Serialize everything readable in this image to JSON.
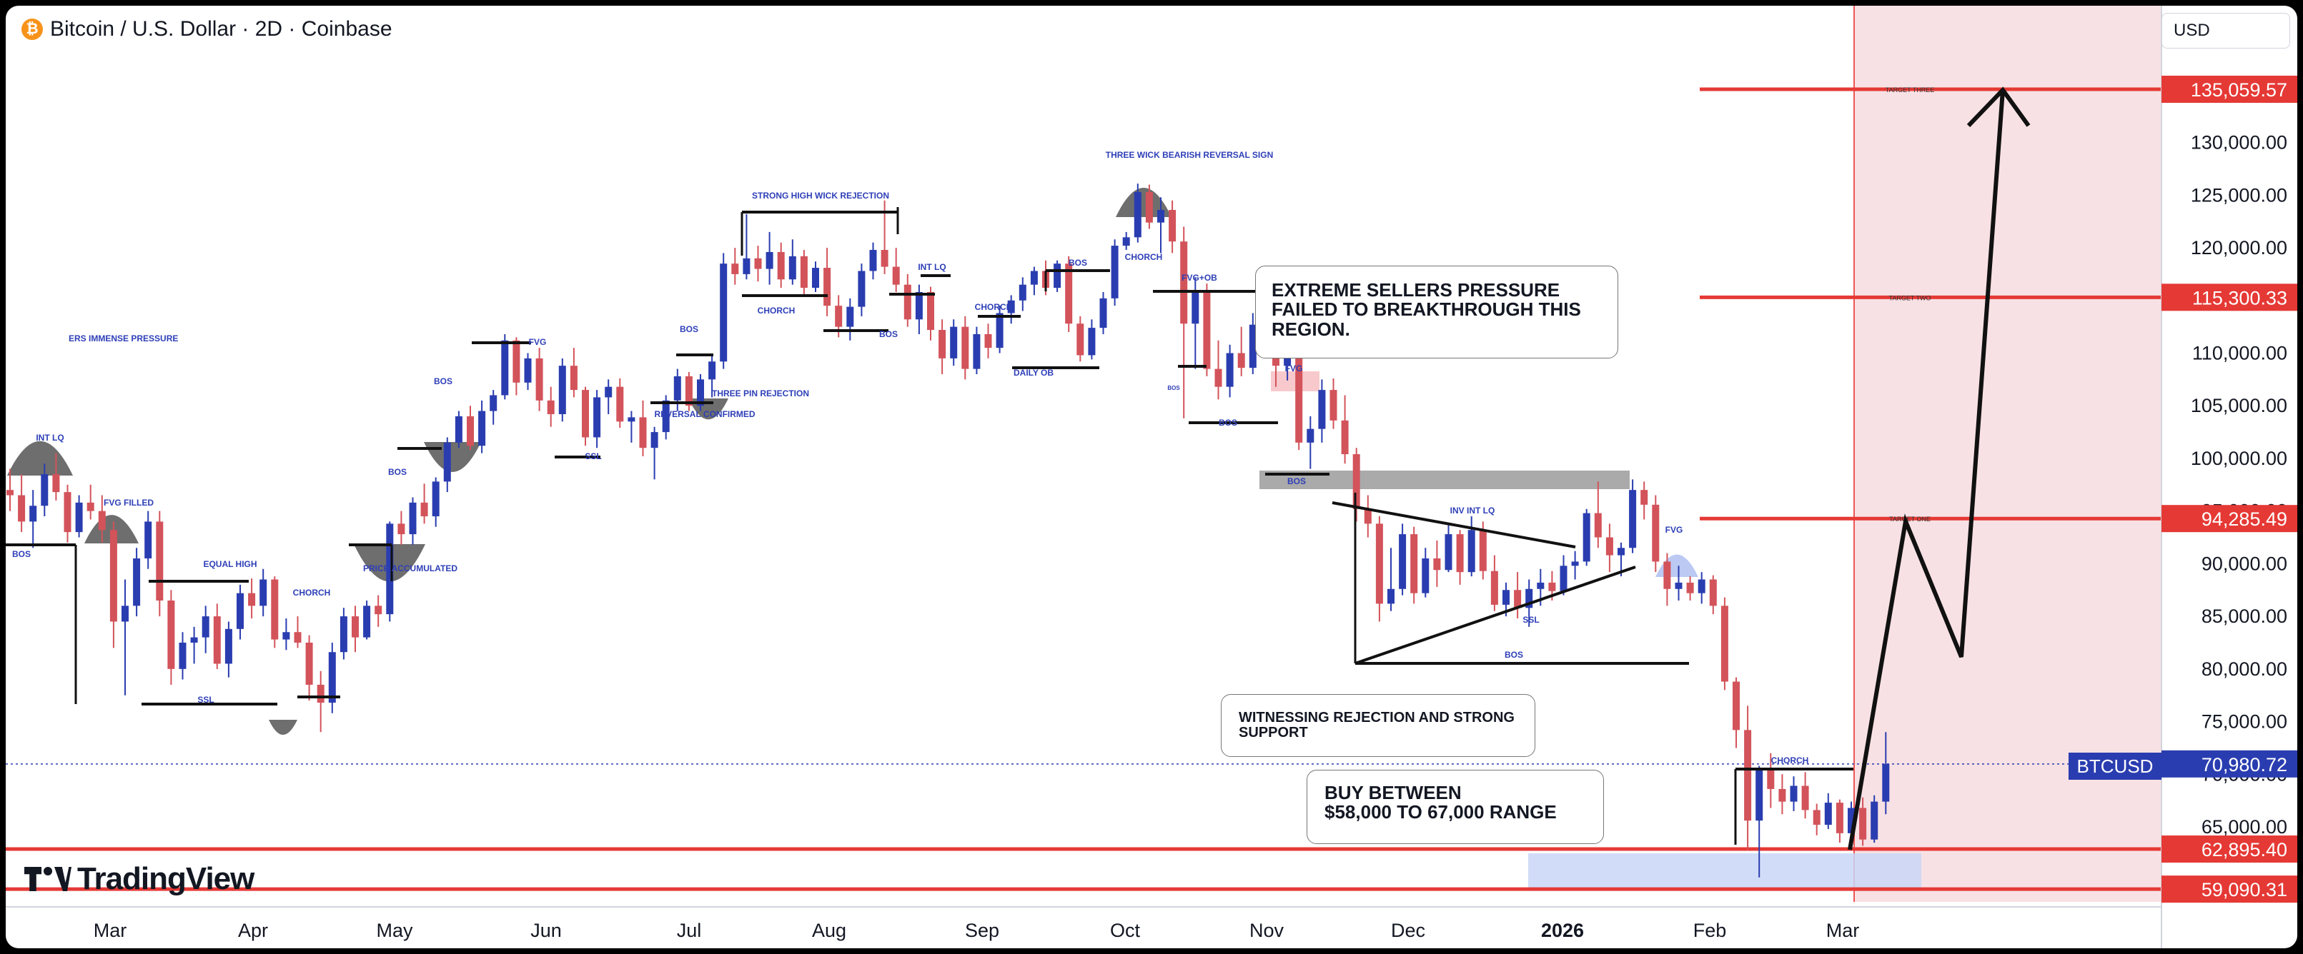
{
  "header": {
    "logo_text": "₿",
    "title": "Bitcoin / U.S. Dollar · 2D · Coinbase"
  },
  "currency": "USD",
  "brand": "TradingView",
  "colors": {
    "bull": "#2a3db0",
    "bear": "#d3535a",
    "target_line": "#e53935",
    "label_blue": "#2e3fb7",
    "price_tag_red": "#e53935",
    "price_tag_blue": "#2a3db0",
    "zone_pink": "#f8e1e4",
    "zone_blue": "#c9d6f7",
    "zone_gray": "#aaaaaa"
  },
  "callouts": {
    "sellers": "EXTREME SELLERS PRESSURE FAILED TO BREAKTHROUGH THIS REGION.",
    "rejection": "WITNESSING REJECTION AND STRONG SUPPORT",
    "buy_line1": "BUY BETWEEN",
    "buy_line2": "$58,000 TO 67,000 RANGE"
  },
  "chart_data": {
    "type": "candlestick",
    "symbol": "BTCUSD",
    "current_price": "70,980.72",
    "x_tick_labels": [
      "Mar",
      "Apr",
      "May",
      "Jun",
      "Jul",
      "Aug",
      "Sep",
      "Oct",
      "Nov",
      "Dec",
      "2026",
      "Feb",
      "Mar"
    ],
    "y_tick_labels": [
      "65,000.00",
      "70,000.00",
      "75,000.00",
      "80,000.00",
      "85,000.00",
      "90,000.00",
      "95,000.00",
      "100,000.00",
      "105,000.00",
      "110,000.00",
      "115,000.00",
      "120,000.00",
      "125,000.00",
      "130,000.00",
      "135,000.00"
    ],
    "ylim": [
      58000,
      140500
    ],
    "levels": [
      {
        "name": "TARGET THREE",
        "value": 135059.57,
        "label": "135,059.57"
      },
      {
        "name": "TARGET TWO",
        "value": 115300.33,
        "label": "115,300.33"
      },
      {
        "name": "TARGET ONE",
        "value": 94285.49,
        "label": "94,285.49"
      },
      {
        "name": "",
        "value": 62895.4,
        "label": "62,895.40"
      },
      {
        "name": "",
        "value": 59090.31,
        "label": "59,090.31"
      }
    ],
    "annotations": [
      "ERS IMMENSE PRESSURE",
      "INT LQ",
      "BOS",
      "FVG FILLED",
      "SSL",
      "EQUAL HIGH",
      "CHORCH",
      "PRICE ACCUMULATED",
      "BOS",
      "BOS",
      "FVG",
      "SSL",
      "REVERSAL CONFIRMED",
      "THREE PIN REJECTION",
      "BOS",
      "STRONG HIGH WICK REJECTION",
      "CHORCH",
      "BOS",
      "INT LQ",
      "CHORCH",
      "BOS",
      "DAILY OB",
      "THREE WICK BEARISH REVERSAL SIGN",
      "CHORCH",
      "FVG+OB",
      "BOS",
      "FVG",
      "BOS",
      "BOS",
      "INV INT LQ",
      "SSL",
      "BOS",
      "FVG",
      "CHORCH"
    ],
    "ohlc": [
      [
        97000,
        99000,
        95000,
        96500
      ],
      [
        96500,
        98500,
        93000,
        94000
      ],
      [
        94000,
        97000,
        91500,
        95500
      ],
      [
        95500,
        99500,
        94500,
        98500
      ],
      [
        98500,
        100500,
        96000,
        96800
      ],
      [
        96800,
        97500,
        92000,
        93000
      ],
      [
        93000,
        96500,
        92500,
        95800
      ],
      [
        95800,
        97500,
        94200,
        95000
      ],
      [
        95000,
        96500,
        92000,
        93200
      ],
      [
        93200,
        94000,
        82000,
        84500
      ],
      [
        84500,
        88500,
        77500,
        86000
      ],
      [
        86000,
        91500,
        85000,
        90500
      ],
      [
        90500,
        95000,
        89500,
        94000
      ],
      [
        94000,
        95000,
        85000,
        86500
      ],
      [
        86500,
        87500,
        78500,
        80000
      ],
      [
        80000,
        83500,
        79000,
        82500
      ],
      [
        82500,
        84000,
        80500,
        83000
      ],
      [
        83000,
        86000,
        81500,
        85000
      ],
      [
        85000,
        86200,
        80000,
        80500
      ],
      [
        80500,
        84500,
        79200,
        83800
      ],
      [
        83800,
        88000,
        82800,
        87200
      ],
      [
        87200,
        88600,
        84800,
        86000
      ],
      [
        86000,
        89500,
        85000,
        88500
      ],
      [
        88500,
        88800,
        82000,
        82800
      ],
      [
        82800,
        84800,
        81800,
        83500
      ],
      [
        83500,
        85000,
        82000,
        82500
      ],
      [
        82500,
        83200,
        77000,
        78500
      ],
      [
        78500,
        79800,
        74000,
        76800
      ],
      [
        76800,
        82500,
        75800,
        81600
      ],
      [
        81600,
        85800,
        80900,
        85000
      ],
      [
        85000,
        86000,
        81600,
        83000
      ],
      [
        83000,
        86500,
        82800,
        86000
      ],
      [
        86000,
        87000,
        84000,
        85200
      ],
      [
        85200,
        94000,
        84500,
        93800
      ],
      [
        93800,
        95000,
        91800,
        92800
      ],
      [
        92800,
        96300,
        91800,
        95800
      ],
      [
        95800,
        97600,
        93800,
        94500
      ],
      [
        94500,
        98200,
        93500,
        97800
      ],
      [
        97800,
        102000,
        96800,
        101500
      ],
      [
        101500,
        104500,
        101000,
        104000
      ],
      [
        104000,
        105000,
        100800,
        101200
      ],
      [
        101200,
        105500,
        100500,
        104500
      ],
      [
        104500,
        106500,
        103200,
        106000
      ],
      [
        106000,
        111800,
        105600,
        111200
      ],
      [
        111200,
        111500,
        106000,
        107200
      ],
      [
        107200,
        110000,
        106500,
        109500
      ],
      [
        109500,
        110500,
        104500,
        105500
      ],
      [
        105500,
        106800,
        103000,
        104200
      ],
      [
        104200,
        109500,
        103500,
        108800
      ],
      [
        108800,
        110500,
        105800,
        106500
      ],
      [
        106500,
        106800,
        101200,
        102000
      ],
      [
        102000,
        106500,
        101000,
        105800
      ],
      [
        105800,
        107500,
        104200,
        106800
      ],
      [
        106800,
        107600,
        102900,
        103500
      ],
      [
        103500,
        104500,
        101500,
        103900
      ],
      [
        103900,
        105500,
        100200,
        101000
      ],
      [
        101000,
        103000,
        98000,
        102500
      ],
      [
        102500,
        106000,
        101800,
        105500
      ],
      [
        105500,
        108500,
        104500,
        107800
      ],
      [
        107800,
        108200,
        104500,
        105000
      ],
      [
        105000,
        108000,
        104500,
        107500
      ],
      [
        107500,
        109800,
        105800,
        109200
      ],
      [
        109200,
        119500,
        108500,
        118500
      ],
      [
        118500,
        120000,
        116500,
        117500
      ],
      [
        117500,
        123200,
        117000,
        119000
      ],
      [
        119000,
        120200,
        116800,
        118000
      ],
      [
        118000,
        121500,
        116500,
        119600
      ],
      [
        119600,
        120500,
        116200,
        117000
      ],
      [
        117000,
        120800,
        116500,
        119200
      ],
      [
        119200,
        119800,
        115500,
        116200
      ],
      [
        116200,
        118700,
        115800,
        118100
      ],
      [
        118100,
        120000,
        113500,
        114500
      ],
      [
        114500,
        115500,
        111500,
        112500
      ],
      [
        112500,
        115200,
        111200,
        114400
      ],
      [
        114400,
        118500,
        113500,
        117800
      ],
      [
        117800,
        120500,
        117000,
        119800
      ],
      [
        119800,
        124500,
        117500,
        118200
      ],
      [
        118200,
        120000,
        115800,
        116500
      ],
      [
        116500,
        117500,
        112500,
        113200
      ],
      [
        113200,
        116500,
        111800,
        115800
      ],
      [
        115800,
        116300,
        111200,
        112200
      ],
      [
        112200,
        113200,
        108000,
        109500
      ],
      [
        109500,
        113200,
        108800,
        112500
      ],
      [
        112500,
        113500,
        107500,
        108500
      ],
      [
        108500,
        112500,
        108000,
        111800
      ],
      [
        111800,
        112800,
        109500,
        110500
      ],
      [
        110500,
        114500,
        110000,
        113800
      ],
      [
        113800,
        115500,
        112800,
        115000
      ],
      [
        115000,
        117200,
        114000,
        116500
      ],
      [
        116500,
        118200,
        115500,
        117800
      ],
      [
        117800,
        118800,
        115500,
        116200
      ],
      [
        116200,
        118800,
        115800,
        118500
      ],
      [
        118500,
        119200,
        112000,
        112800
      ],
      [
        112800,
        113500,
        109200,
        109800
      ],
      [
        109800,
        113200,
        109400,
        112400
      ],
      [
        112400,
        115800,
        111800,
        115200
      ],
      [
        115200,
        120800,
        114500,
        120200
      ],
      [
        120200,
        121500,
        119800,
        121000
      ],
      [
        121000,
        126100,
        120500,
        125300
      ],
      [
        125300,
        126000,
        121800,
        122400
      ],
      [
        122400,
        124800,
        119500,
        123600
      ],
      [
        123600,
        124500,
        119500,
        120600
      ],
      [
        120600,
        122000,
        103800,
        112800
      ],
      [
        112800,
        117200,
        108500,
        116000
      ],
      [
        116000,
        116600,
        107800,
        108500
      ],
      [
        108500,
        111200,
        105600,
        106800
      ],
      [
        106800,
        110800,
        105800,
        110000
      ],
      [
        110000,
        112500,
        107800,
        108600
      ],
      [
        108600,
        113800,
        108000,
        112700
      ],
      [
        112700,
        114800,
        110200,
        111000
      ],
      [
        111000,
        112400,
        106800,
        108800
      ],
      [
        108800,
        113500,
        107400,
        111800
      ],
      [
        111800,
        112000,
        100800,
        101500
      ],
      [
        101500,
        104000,
        99000,
        102800
      ],
      [
        102800,
        107500,
        101500,
        106500
      ],
      [
        106500,
        107600,
        102800,
        103600
      ],
      [
        103600,
        106000,
        99500,
        100400
      ],
      [
        100400,
        101000,
        94000,
        95200
      ],
      [
        95200,
        96500,
        92500,
        93800
      ],
      [
        93800,
        94500,
        84500,
        86200
      ],
      [
        86200,
        91500,
        85500,
        87600
      ],
      [
        87600,
        93800,
        87000,
        92800
      ],
      [
        92800,
        93500,
        86200,
        87200
      ],
      [
        87200,
        91500,
        86800,
        90500
      ],
      [
        90500,
        92200,
        87800,
        89400
      ],
      [
        89400,
        93800,
        89200,
        92800
      ],
      [
        92800,
        93200,
        88000,
        89200
      ],
      [
        89200,
        94500,
        88800,
        93200
      ],
      [
        93200,
        94000,
        88500,
        89300
      ],
      [
        89300,
        90800,
        85500,
        86100
      ],
      [
        86100,
        88200,
        85000,
        87500
      ],
      [
        87500,
        89200,
        84800,
        85800
      ],
      [
        85800,
        88500,
        84000,
        87600
      ],
      [
        87600,
        89500,
        86000,
        88200
      ],
      [
        88200,
        89300,
        86500,
        87400
      ],
      [
        87400,
        90800,
        87000,
        89800
      ],
      [
        89800,
        91200,
        88500,
        90200
      ],
      [
        90200,
        95200,
        89800,
        94800
      ],
      [
        94800,
        97800,
        91500,
        92500
      ],
      [
        92500,
        93800,
        89200,
        90800
      ],
      [
        90800,
        92000,
        88800,
        91500
      ],
      [
        91500,
        98000,
        91000,
        97000
      ],
      [
        97000,
        97800,
        94200,
        95600
      ],
      [
        95600,
        96500,
        89200,
        90200
      ],
      [
        90200,
        91000,
        86000,
        87600
      ],
      [
        87600,
        89800,
        86500,
        88200
      ],
      [
        88200,
        88800,
        86500,
        87200
      ],
      [
        87200,
        89200,
        86200,
        88500
      ],
      [
        88500,
        88900,
        85200,
        86000
      ],
      [
        86000,
        86800,
        78000,
        78800
      ],
      [
        78800,
        79200,
        72500,
        74200
      ],
      [
        74200,
        76500,
        62800,
        65600
      ],
      [
        65600,
        70800,
        60200,
        70400
      ],
      [
        70400,
        72000,
        66800,
        68600
      ],
      [
        68600,
        70000,
        66200,
        67400
      ],
      [
        67400,
        69800,
        66500,
        68900
      ],
      [
        68900,
        70200,
        65800,
        66600
      ],
      [
        66600,
        67200,
        64200,
        65200
      ],
      [
        65200,
        68200,
        64800,
        67300
      ],
      [
        67300,
        67600,
        63500,
        64400
      ],
      [
        64400,
        67400,
        63800,
        66800
      ],
      [
        66800,
        67800,
        63200,
        63800
      ],
      [
        63800,
        68000,
        63500,
        67400
      ],
      [
        67400,
        74000,
        66200,
        70980
      ]
    ]
  }
}
